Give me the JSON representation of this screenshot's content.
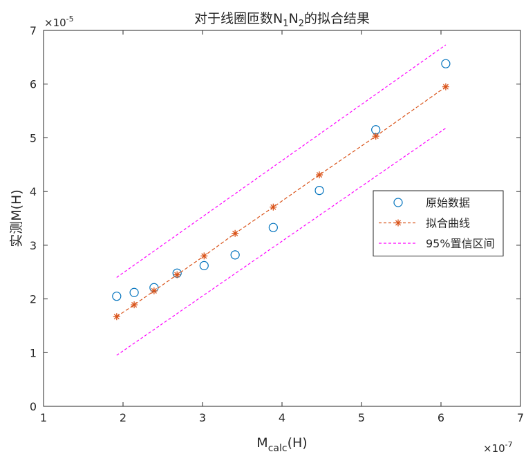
{
  "chart_data": {
    "type": "scatter",
    "title": {
      "prefix": "对于线圈匝数",
      "n_letter": "N",
      "sub1": "1",
      "sub2": "2",
      "suffix": "的拟合结果"
    },
    "xlabel": {
      "main": "M",
      "sub": "calc",
      "unit": "(H)"
    },
    "ylabel": "实测M(H)",
    "x_exponent": {
      "base": "×10",
      "power": "-7"
    },
    "y_exponent": {
      "base": "×10",
      "power": "-5"
    },
    "xlim": [
      1,
      7
    ],
    "ylim": [
      0,
      7
    ],
    "x_ticks": [
      1,
      2,
      3,
      4,
      5,
      6,
      7
    ],
    "y_ticks": [
      0,
      1,
      2,
      3,
      4,
      5,
      6,
      7
    ],
    "grid": false,
    "legend_position": "right",
    "series": [
      {
        "name": "原始数据",
        "kind": "markers",
        "marker": "circle",
        "color": "#0072BD",
        "x": [
          1.92,
          2.14,
          2.39,
          2.68,
          3.02,
          3.41,
          3.89,
          4.47,
          5.18,
          6.06
        ],
        "y": [
          2.05,
          2.12,
          2.21,
          2.48,
          2.62,
          2.82,
          3.33,
          4.02,
          5.15,
          6.38
        ]
      },
      {
        "name": "拟合曲线",
        "kind": "line-markers",
        "marker": "asterisk",
        "line_style": "dashed",
        "color": "#D95319",
        "x": [
          1.92,
          2.14,
          2.39,
          2.68,
          3.02,
          3.41,
          3.89,
          4.47,
          5.18,
          6.06
        ],
        "y": [
          1.67,
          1.89,
          2.15,
          2.45,
          2.8,
          3.22,
          3.71,
          4.31,
          5.03,
          5.95
        ]
      },
      {
        "name": "95%置信区间",
        "kind": "line",
        "line_style": "dashed",
        "color": "#FF00FF",
        "x": [
          1.92,
          6.06
        ],
        "y": [
          2.4,
          6.73
        ]
      },
      {
        "kind": "line",
        "line_style": "dashed",
        "color": "#FF00FF",
        "x": [
          1.92,
          6.06
        ],
        "y": [
          0.95,
          5.18
        ]
      }
    ]
  }
}
